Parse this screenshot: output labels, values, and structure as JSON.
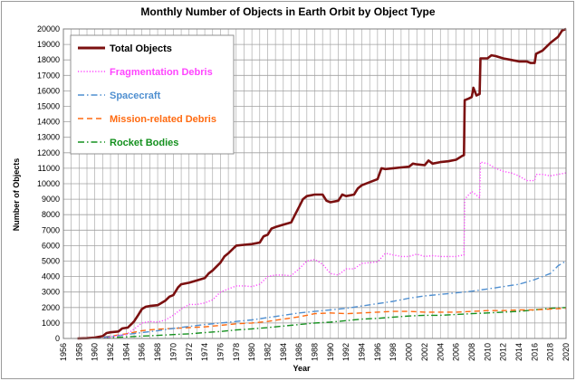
{
  "chart_data": {
    "type": "line",
    "title": "Monthly Number of Objects in Earth Orbit by Object Type",
    "xlabel": "Year",
    "ylabel": "Number of Objects",
    "xlim": [
      1956,
      2020
    ],
    "ylim": [
      0,
      20000
    ],
    "x_ticks": [
      "1956",
      "1958",
      "1960",
      "1962",
      "1964",
      "1966",
      "1968",
      "1970",
      "1972",
      "1974",
      "1976",
      "1978",
      "1980",
      "1982",
      "1984",
      "1986",
      "1988",
      "1990",
      "1992",
      "1994",
      "1996",
      "1998",
      "2000",
      "2002",
      "2004",
      "2006",
      "2008",
      "2010",
      "2012",
      "2014",
      "2016",
      "2018",
      "2020"
    ],
    "y_ticks": [
      "0",
      "1000",
      "2000",
      "3000",
      "4000",
      "5000",
      "6000",
      "7000",
      "8000",
      "9000",
      "10000",
      "11000",
      "12000",
      "13000",
      "14000",
      "15000",
      "16000",
      "17000",
      "18000",
      "19000",
      "20000"
    ],
    "grid": true,
    "legend_position": "top-left",
    "series": [
      {
        "name": "Total Objects",
        "color": "#7b1010",
        "style": "solid",
        "points": [
          [
            1957.8,
            0
          ],
          [
            1959,
            20
          ],
          [
            1960,
            60
          ],
          [
            1961,
            150
          ],
          [
            1961.5,
            350
          ],
          [
            1962,
            400
          ],
          [
            1963,
            450
          ],
          [
            1963.5,
            650
          ],
          [
            1964.2,
            700
          ],
          [
            1964.8,
            1000
          ],
          [
            1965,
            1100
          ],
          [
            1965.5,
            1500
          ],
          [
            1966,
            1900
          ],
          [
            1966.5,
            2050
          ],
          [
            1967,
            2100
          ],
          [
            1968,
            2150
          ],
          [
            1969,
            2450
          ],
          [
            1969.5,
            2700
          ],
          [
            1970,
            2800
          ],
          [
            1970.6,
            3300
          ],
          [
            1971,
            3500
          ],
          [
            1972,
            3600
          ],
          [
            1973,
            3750
          ],
          [
            1974,
            3900
          ],
          [
            1974.5,
            4200
          ],
          [
            1975,
            4400
          ],
          [
            1976,
            4900
          ],
          [
            1976.5,
            5300
          ],
          [
            1977,
            5500
          ],
          [
            1978,
            6000
          ],
          [
            1979,
            6050
          ],
          [
            1980,
            6100
          ],
          [
            1981,
            6200
          ],
          [
            1981.5,
            6600
          ],
          [
            1982,
            6700
          ],
          [
            1982.5,
            7100
          ],
          [
            1983,
            7200
          ],
          [
            1984,
            7350
          ],
          [
            1985,
            7500
          ],
          [
            1985.5,
            8000
          ],
          [
            1986,
            8500
          ],
          [
            1986.5,
            9000
          ],
          [
            1987,
            9200
          ],
          [
            1988,
            9300
          ],
          [
            1989,
            9300
          ],
          [
            1989.5,
            8900
          ],
          [
            1990,
            8800
          ],
          [
            1991,
            8900
          ],
          [
            1991.5,
            9300
          ],
          [
            1992,
            9200
          ],
          [
            1993,
            9300
          ],
          [
            1993.5,
            9700
          ],
          [
            1994,
            9900
          ],
          [
            1995,
            10100
          ],
          [
            1996,
            10300
          ],
          [
            1996.5,
            11000
          ],
          [
            1997,
            10950
          ],
          [
            1998,
            11000
          ],
          [
            1999,
            11050
          ],
          [
            2000,
            11100
          ],
          [
            2000.5,
            11300
          ],
          [
            2001,
            11250
          ],
          [
            2002,
            11200
          ],
          [
            2002.5,
            11500
          ],
          [
            2003,
            11300
          ],
          [
            2004,
            11400
          ],
          [
            2005,
            11450
          ],
          [
            2006,
            11550
          ],
          [
            2006.8,
            11800
          ],
          [
            2007,
            11850
          ],
          [
            2007.1,
            15400
          ],
          [
            2007.6,
            15500
          ],
          [
            2008,
            15600
          ],
          [
            2008.2,
            16200
          ],
          [
            2008.6,
            15700
          ],
          [
            2009,
            15800
          ],
          [
            2009.1,
            18100
          ],
          [
            2010,
            18100
          ],
          [
            2010.5,
            18300
          ],
          [
            2011,
            18250
          ],
          [
            2012,
            18100
          ],
          [
            2013,
            18000
          ],
          [
            2014,
            17900
          ],
          [
            2015,
            17900
          ],
          [
            2015.5,
            17800
          ],
          [
            2016,
            17800
          ],
          [
            2016.2,
            18400
          ],
          [
            2017,
            18600
          ],
          [
            2018,
            19100
          ],
          [
            2019,
            19500
          ],
          [
            2019.5,
            19900
          ],
          [
            2020,
            20000
          ]
        ]
      },
      {
        "name": "Fragmentation Debris",
        "color": "#ff44ff",
        "style": "dotted",
        "points": [
          [
            1961,
            0
          ],
          [
            1962,
            100
          ],
          [
            1963,
            200
          ],
          [
            1964,
            250
          ],
          [
            1965,
            600
          ],
          [
            1966,
            1000
          ],
          [
            1967,
            1100
          ],
          [
            1968,
            1050
          ],
          [
            1969,
            1200
          ],
          [
            1970,
            1500
          ],
          [
            1971,
            1900
          ],
          [
            1972,
            2200
          ],
          [
            1973,
            2200
          ],
          [
            1974,
            2300
          ],
          [
            1975,
            2500
          ],
          [
            1976,
            3000
          ],
          [
            1977,
            3200
          ],
          [
            1978,
            3400
          ],
          [
            1979,
            3400
          ],
          [
            1980,
            3350
          ],
          [
            1981,
            3500
          ],
          [
            1982,
            4000
          ],
          [
            1983,
            4100
          ],
          [
            1984,
            4100
          ],
          [
            1985,
            4050
          ],
          [
            1986,
            4500
          ],
          [
            1987,
            5000
          ],
          [
            1988,
            5100
          ],
          [
            1989,
            4800
          ],
          [
            1990,
            4200
          ],
          [
            1991,
            4100
          ],
          [
            1992,
            4500
          ],
          [
            1993,
            4500
          ],
          [
            1994,
            4850
          ],
          [
            1995,
            4900
          ],
          [
            1996,
            4950
          ],
          [
            1997,
            5500
          ],
          [
            1998,
            5400
          ],
          [
            1999,
            5300
          ],
          [
            2000,
            5300
          ],
          [
            2001,
            5450
          ],
          [
            2002,
            5300
          ],
          [
            2003,
            5350
          ],
          [
            2004,
            5300
          ],
          [
            2005,
            5300
          ],
          [
            2006,
            5300
          ],
          [
            2007,
            5400
          ],
          [
            2007.1,
            9000
          ],
          [
            2008,
            9500
          ],
          [
            2008.5,
            9300
          ],
          [
            2009,
            9100
          ],
          [
            2009.1,
            11400
          ],
          [
            2010,
            11300
          ],
          [
            2011,
            11000
          ],
          [
            2012,
            10800
          ],
          [
            2013,
            10700
          ],
          [
            2014,
            10500
          ],
          [
            2015,
            10200
          ],
          [
            2016,
            10200
          ],
          [
            2016.2,
            10600
          ],
          [
            2017,
            10600
          ],
          [
            2018,
            10500
          ],
          [
            2019,
            10600
          ],
          [
            2020,
            10700
          ]
        ]
      },
      {
        "name": "Spacecraft",
        "color": "#4f8fd0",
        "style": "dashdot",
        "points": [
          [
            1957.8,
            0
          ],
          [
            1960,
            40
          ],
          [
            1962,
            120
          ],
          [
            1964,
            250
          ],
          [
            1966,
            380
          ],
          [
            1968,
            500
          ],
          [
            1970,
            650
          ],
          [
            1972,
            780
          ],
          [
            1974,
            900
          ],
          [
            1976,
            1000
          ],
          [
            1978,
            1100
          ],
          [
            1980,
            1200
          ],
          [
            1982,
            1350
          ],
          [
            1984,
            1500
          ],
          [
            1986,
            1650
          ],
          [
            1988,
            1750
          ],
          [
            1990,
            1850
          ],
          [
            1992,
            1950
          ],
          [
            1994,
            2100
          ],
          [
            1996,
            2250
          ],
          [
            1998,
            2400
          ],
          [
            2000,
            2600
          ],
          [
            2002,
            2750
          ],
          [
            2004,
            2850
          ],
          [
            2006,
            2950
          ],
          [
            2008,
            3050
          ],
          [
            2010,
            3200
          ],
          [
            2012,
            3350
          ],
          [
            2014,
            3500
          ],
          [
            2016,
            3800
          ],
          [
            2018,
            4200
          ],
          [
            2019,
            4700
          ],
          [
            2020,
            5000
          ]
        ]
      },
      {
        "name": "Mission-related Debris",
        "color": "#ff6a10",
        "style": "dashed",
        "points": [
          [
            1957.8,
            0
          ],
          [
            1960,
            30
          ],
          [
            1962,
            150
          ],
          [
            1964,
            300
          ],
          [
            1966,
            500
          ],
          [
            1968,
            600
          ],
          [
            1970,
            650
          ],
          [
            1972,
            700
          ],
          [
            1974,
            750
          ],
          [
            1976,
            850
          ],
          [
            1978,
            950
          ],
          [
            1980,
            1000
          ],
          [
            1982,
            1100
          ],
          [
            1984,
            1250
          ],
          [
            1986,
            1400
          ],
          [
            1988,
            1600
          ],
          [
            1990,
            1650
          ],
          [
            1992,
            1600
          ],
          [
            1994,
            1650
          ],
          [
            1996,
            1700
          ],
          [
            1998,
            1750
          ],
          [
            2000,
            1750
          ],
          [
            2002,
            1700
          ],
          [
            2004,
            1700
          ],
          [
            2006,
            1700
          ],
          [
            2008,
            1750
          ],
          [
            2010,
            1800
          ],
          [
            2012,
            1800
          ],
          [
            2014,
            1850
          ],
          [
            2016,
            1850
          ],
          [
            2018,
            1900
          ],
          [
            2020,
            1950
          ]
        ]
      },
      {
        "name": "Rocket Bodies",
        "color": "#14901e",
        "style": "dashdot",
        "points": [
          [
            1957.8,
            0
          ],
          [
            1960,
            20
          ],
          [
            1962,
            60
          ],
          [
            1964,
            100
          ],
          [
            1966,
            150
          ],
          [
            1968,
            200
          ],
          [
            1970,
            250
          ],
          [
            1972,
            300
          ],
          [
            1974,
            380
          ],
          [
            1976,
            450
          ],
          [
            1978,
            550
          ],
          [
            1980,
            620
          ],
          [
            1982,
            700
          ],
          [
            1984,
            800
          ],
          [
            1986,
            900
          ],
          [
            1988,
            1000
          ],
          [
            1990,
            1050
          ],
          [
            1992,
            1150
          ],
          [
            1994,
            1250
          ],
          [
            1996,
            1300
          ],
          [
            1998,
            1380
          ],
          [
            2000,
            1450
          ],
          [
            2002,
            1500
          ],
          [
            2004,
            1500
          ],
          [
            2006,
            1550
          ],
          [
            2008,
            1600
          ],
          [
            2010,
            1650
          ],
          [
            2012,
            1700
          ],
          [
            2014,
            1750
          ],
          [
            2016,
            1850
          ],
          [
            2018,
            1950
          ],
          [
            2020,
            2000
          ]
        ]
      }
    ]
  }
}
